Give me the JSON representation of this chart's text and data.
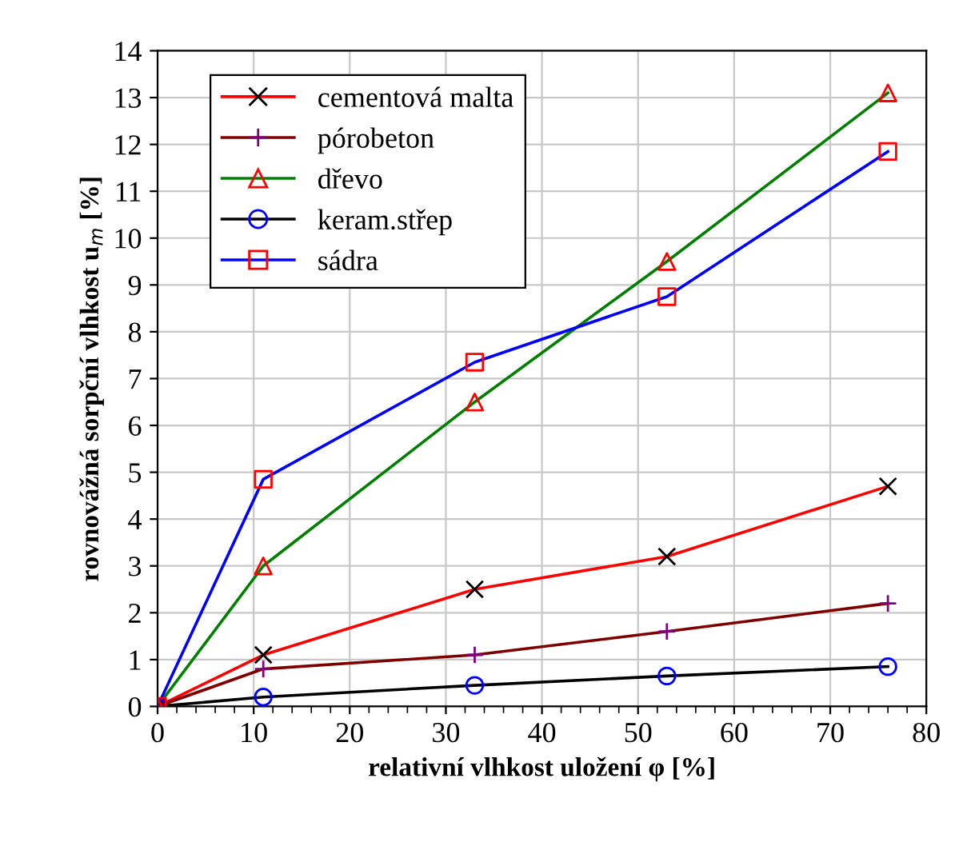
{
  "chart_data": {
    "type": "line",
    "xlabel": "relativní vlhkost uložení φ [%]",
    "ylabel": "rovnovážná sorpční vlhkost u$_{m}$ [%]",
    "x": [
      0,
      11,
      33,
      53,
      76
    ],
    "series": [
      {
        "name": "cementová malta",
        "color": "#ff0000",
        "colors": [
          "#000000",
          "#000000",
          "#000000",
          "#000000",
          "#000000"
        ],
        "marker": "cross",
        "values": [
          0,
          1.1,
          2.5,
          3.2,
          4.7
        ]
      },
      {
        "name": "pórobeton",
        "color": "#800000",
        "colors": [
          "#800080",
          "#800080",
          "#800080",
          "#800080",
          "#800080"
        ],
        "marker": "plus",
        "values": [
          0,
          0.8,
          1.1,
          1.6,
          2.2
        ]
      },
      {
        "name": "dřevo",
        "color": "#008000",
        "colors": [
          "#ff0000",
          "#ff0000",
          "#ff0000",
          "#ff0000",
          "#ff0000"
        ],
        "marker": "triangle",
        "values": [
          0,
          3.0,
          6.5,
          9.5,
          13.1
        ]
      },
      {
        "name": "keram.střep",
        "color": "#000000",
        "colors": [
          "#0000ff",
          "#0000ff",
          "#0000ff",
          "#0000ff",
          "#0000ff"
        ],
        "marker": "circle",
        "values": [
          0,
          0.2,
          0.45,
          0.65,
          0.85
        ]
      },
      {
        "name": "sádra",
        "color": "#0000ff",
        "colors": [
          "#ff0000",
          "#ff0000",
          "#ff0000",
          "#ff0000",
          "#ff0000"
        ],
        "marker": "square",
        "values": [
          0,
          4.85,
          7.35,
          8.75,
          11.85
        ]
      }
    ],
    "xlim": [
      0,
      80
    ],
    "xticks": [
      0,
      10,
      20,
      30,
      40,
      50,
      60,
      70,
      80
    ],
    "ylim": [
      0,
      14
    ],
    "yticks": [
      0,
      1,
      2,
      3,
      4,
      5,
      6,
      7,
      8,
      9,
      10,
      11,
      12,
      13,
      14
    ],
    "grid": true,
    "legend": "top left",
    "line_style": "solid"
  }
}
